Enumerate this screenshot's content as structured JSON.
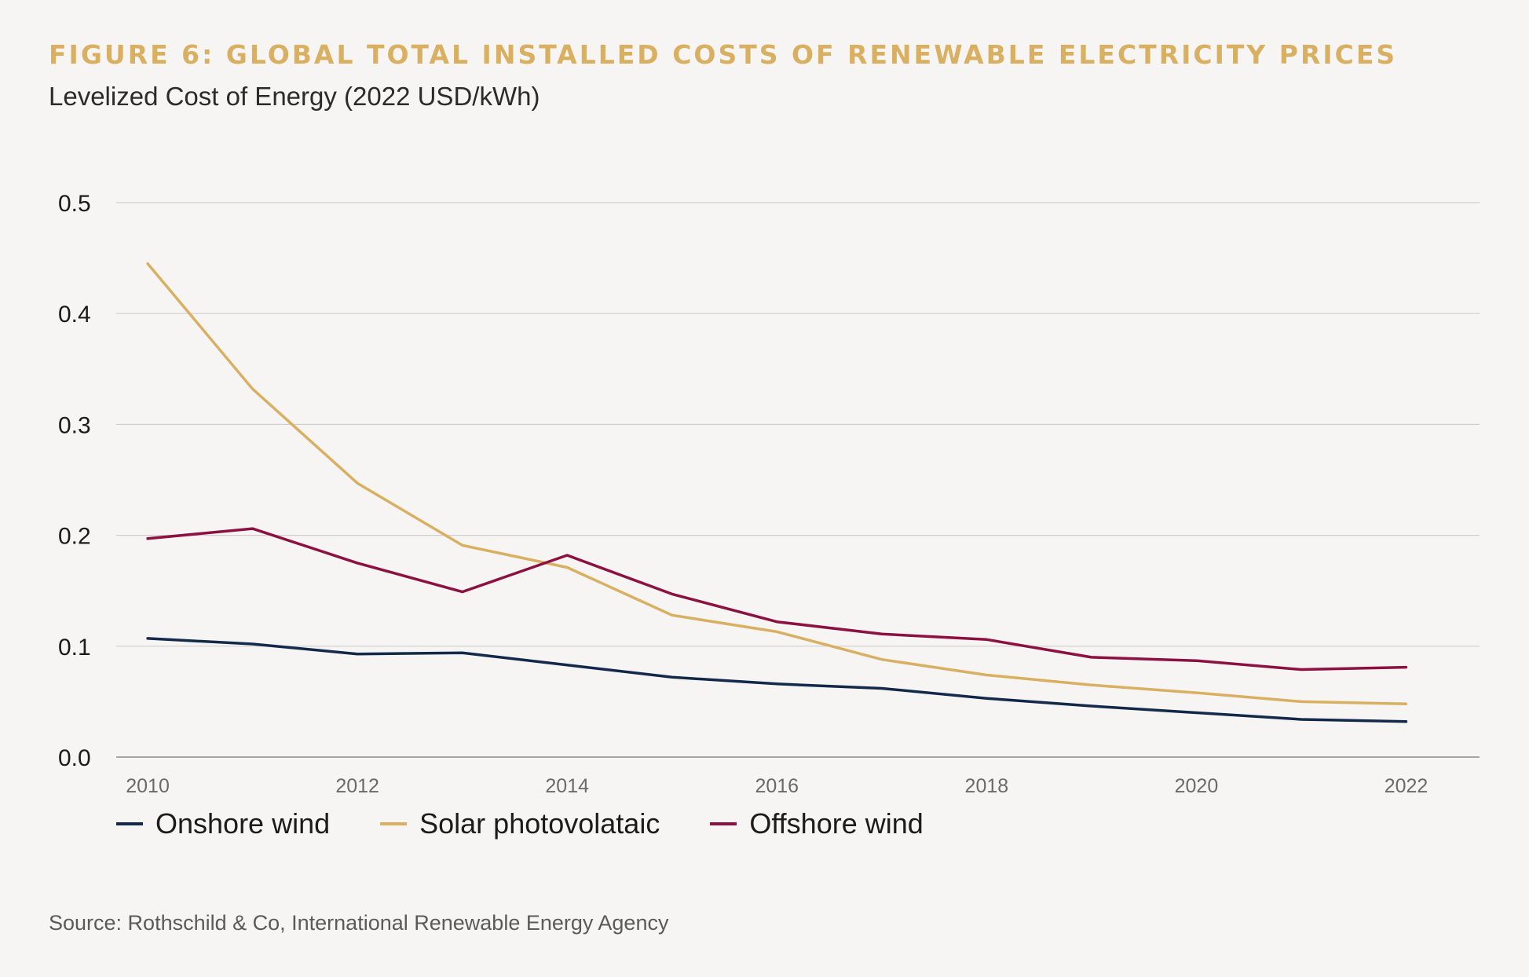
{
  "header": {
    "title": "FIGURE 6: GLOBAL TOTAL INSTALLED COSTS OF RENEWABLE ELECTRICITY PRICES",
    "subtitle": "Levelized Cost of Energy (2022 USD/kWh)"
  },
  "source": "Source: Rothschild & Co, International Renewable Energy Agency",
  "chart_data": {
    "type": "line",
    "title": "FIGURE 6: GLOBAL TOTAL INSTALLED COSTS OF RENEWABLE ELECTRICITY PRICES",
    "ylabel": "Levelized Cost of Energy (2022 USD/kWh)",
    "xlabel": "",
    "x": [
      2010,
      2011,
      2012,
      2013,
      2014,
      2015,
      2016,
      2017,
      2018,
      2019,
      2020,
      2021,
      2022
    ],
    "xlim": [
      2009.7,
      2022.7
    ],
    "ylim": [
      0,
      0.5
    ],
    "yticks": [
      "0.0",
      "0.1",
      "0.2",
      "0.3",
      "0.4",
      "0.5"
    ],
    "xticks": [
      "2010",
      "2012",
      "2014",
      "2016",
      "2018",
      "2020",
      "2022"
    ],
    "grid": "horizontal",
    "legend_position": "bottom",
    "series": [
      {
        "name": "Onshore wind",
        "color": "#13294b",
        "values": [
          0.107,
          0.102,
          0.093,
          0.094,
          0.083,
          0.072,
          0.066,
          0.062,
          0.053,
          0.046,
          0.04,
          0.034,
          0.032
        ]
      },
      {
        "name": "Solar photovolataic",
        "color": "#d9b061",
        "values": [
          0.445,
          0.332,
          0.247,
          0.191,
          0.171,
          0.128,
          0.113,
          0.088,
          0.074,
          0.065,
          0.058,
          0.05,
          0.048
        ]
      },
      {
        "name": "Offshore wind",
        "color": "#8c1040",
        "values": [
          0.197,
          0.206,
          0.175,
          0.149,
          0.182,
          0.147,
          0.122,
          0.111,
          0.106,
          0.09,
          0.087,
          0.079,
          0.081
        ]
      }
    ]
  }
}
